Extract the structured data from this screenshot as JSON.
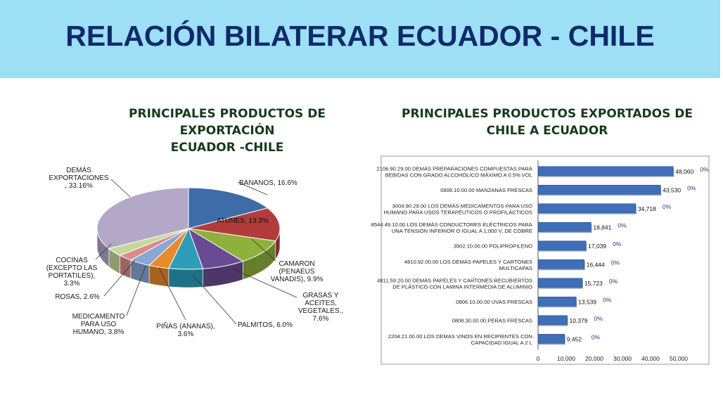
{
  "header": {
    "title": "RELACIÓN BILATERAR ECUADOR - CHILE"
  },
  "left_panel": {
    "title": [
      "PRINCIPALES PRODUCTOS DE EXPORTACIÓN",
      "ECUADOR -CHILE"
    ]
  },
  "right_panel": {
    "title": [
      "PRINCIPALES PRODUCTOS EXPORTADOS DE",
      "CHILE A ECUADOR"
    ]
  },
  "colors": {
    "header_bg": "#9ddff4",
    "title": "#102a6b",
    "bar": "#3f6fb8"
  },
  "chart_data": [
    {
      "type": "pie",
      "title": "",
      "slices": [
        {
          "label": [
            "BANANOS, 16.6%"
          ],
          "value": 16.6,
          "color": "#3e6ca8"
        },
        {
          "label": [
            "ATUNES, 13.3%"
          ],
          "value": 13.3,
          "color": "#b43b3b"
        },
        {
          "label": [
            "CAMARON",
            "(PENAEUS",
            "VANADIS), 9.9%"
          ],
          "value": 9.9,
          "color": "#8eb13c"
        },
        {
          "label": [
            "GRASAS Y",
            "ACEITES,",
            "VEGETALES.,",
            "7.6%"
          ],
          "value": 7.6,
          "color": "#6a4b93"
        },
        {
          "label": [
            "PALMITOS, 6.0%"
          ],
          "value": 6.0,
          "color": "#2e9dba"
        },
        {
          "label": [
            "PIÑAS (ANANAS),",
            "3.6%"
          ],
          "value": 3.6,
          "color": "#e88b2c"
        },
        {
          "label": [
            "MEDICAMENTO",
            "PARA USO",
            "HUMANO, 3.8%"
          ],
          "value": 3.8,
          "color": "#8aa6d3"
        },
        {
          "label": [
            "ROSAS, 2.6%"
          ],
          "value": 2.6,
          "color": "#dc8a8a"
        },
        {
          "label": [
            "COCINAS",
            "(EXCEPTO LAS",
            "PORTATILES),",
            "3.3%"
          ],
          "value": 3.3,
          "color": "#c4d89b"
        },
        {
          "label": [
            "DEMÁS",
            "EXPORTACIONES",
            ", 33.16%"
          ],
          "value": 33.16,
          "color": "#b4a8c8"
        }
      ]
    },
    {
      "type": "bar",
      "orientation": "horizontal",
      "categories": [
        [
          "2106.90.29.00 DEMÁS PREPARACIONES COMPUESTAS PARA",
          "BEBIDAS CON GRADO ALCOHÓLICO MÁXIMO A 0.5% VOL"
        ],
        [
          "0808.10.00.00 MANZANAS FRESCAS"
        ],
        [
          "3004.90.29.00 LOS DEMÁS MEDICAMENTOS PARA USO",
          "HUMANO PARA USOS TERAPÉUTICOS O PROFILÁCTICOS"
        ],
        [
          "8544.49.10.00 LOS DEMÁS CONDUCTORES ELÉCTRICOS PARA",
          "UNA TENSIÓN INFERIOR O IGUAL A 1,000 V, DE COBRE"
        ],
        [
          "3902.10.00.00 POLIPROPILENO"
        ],
        [
          "4810.92.00.00 LOS DEMÁS PAPELES Y CARTONES",
          "MULTICAPAS"
        ],
        [
          "4811.59.20.00 DEMÁS PAPELES Y CARTONES RECUBIERTOS",
          "DE PLÁSTICO CON LAMINA INTERMEDIA DE ALUMINIO"
        ],
        [
          "0806.10.00.00 UVAS FRESCAS"
        ],
        [
          "0808.30.00.00 PERAS FRESCAS"
        ],
        [
          "2204.21.00.00 LOS DEMAS VINOS EN RECIPIENTES CON",
          "CAPACIDAD IGUAL A 2 L"
        ]
      ],
      "values": [
        48060,
        43530,
        34718,
        18841,
        17039,
        16444,
        15723,
        13539,
        10379,
        9452
      ],
      "value_labels": [
        "48,060",
        "43,530",
        "34,718",
        "18,841",
        "17,039",
        "16,444",
        "15,723",
        "13,539",
        "10,379",
        "9,452"
      ],
      "pct_labels": [
        "0%",
        "0%",
        "0%",
        "0%",
        "0%",
        "0%",
        "0%",
        "0%",
        "0%",
        "0%"
      ],
      "xlim": [
        0,
        50000
      ],
      "xticks": [
        "0",
        "10,000",
        "20,000",
        "30,000",
        "40,000",
        "50,000"
      ]
    }
  ]
}
